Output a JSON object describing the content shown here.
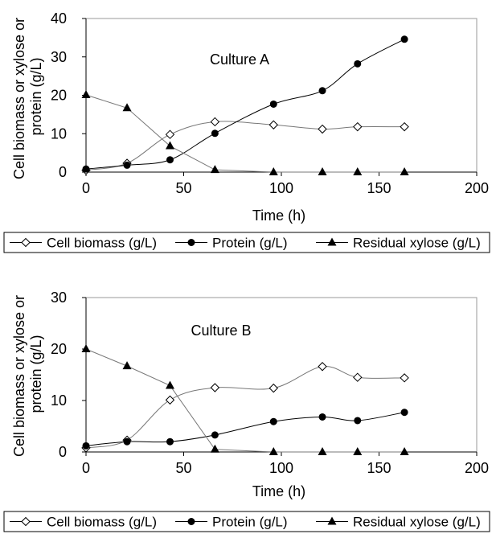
{
  "chart_data": [
    {
      "type": "line",
      "annotation": "Culture A",
      "xlabel": "Time (h)",
      "ylabel": "Cell biomass or xylose or protein (g/L)",
      "xlim": [
        0,
        200
      ],
      "ylim": [
        0,
        40
      ],
      "xticks": [
        "0",
        "50",
        "100",
        "150",
        "200"
      ],
      "yticks": [
        "0",
        "10",
        "20",
        "30",
        "40"
      ],
      "grid": false,
      "legend_position": "bottom",
      "series": [
        {
          "name": "Cell biomass (g/L)",
          "marker": "diamond-open",
          "smooth": true,
          "x": [
            0,
            21,
            43,
            66,
            96,
            121,
            139,
            163
          ],
          "y": [
            0.5,
            2.3,
            9.8,
            13.1,
            12.3,
            11.2,
            11.8,
            11.8
          ]
        },
        {
          "name": "Protein (g/L)",
          "marker": "circle-filled",
          "smooth": true,
          "x": [
            0,
            21,
            43,
            66,
            96,
            121,
            139,
            163
          ],
          "y": [
            0.8,
            1.8,
            3.2,
            10.1,
            17.7,
            21.2,
            28.2,
            34.6
          ]
        },
        {
          "name": "Residual xylose (g/L)",
          "marker": "triangle-filled",
          "smooth": false,
          "x": [
            0,
            21,
            43,
            66,
            96,
            121,
            139,
            163
          ],
          "y": [
            20.1,
            16.7,
            6.8,
            0.6,
            0,
            0,
            0,
            0
          ]
        }
      ]
    },
    {
      "type": "line",
      "annotation": "Culture B",
      "xlabel": "Time (h)",
      "ylabel": "Cell biomass or xylose or protein (g/L)",
      "xlim": [
        0,
        200
      ],
      "ylim": [
        0,
        30
      ],
      "xticks": [
        "0",
        "50",
        "100",
        "150",
        "200"
      ],
      "yticks": [
        "0",
        "10",
        "20",
        "30"
      ],
      "grid": false,
      "legend_position": "bottom",
      "series": [
        {
          "name": "Cell biomass (g/L)",
          "marker": "diamond-open",
          "smooth": true,
          "x": [
            0,
            21,
            43,
            66,
            96,
            121,
            139,
            163
          ],
          "y": [
            0.8,
            2.3,
            10.1,
            12.5,
            12.4,
            16.6,
            14.5,
            14.4
          ]
        },
        {
          "name": "Protein (g/L)",
          "marker": "circle-filled",
          "smooth": true,
          "x": [
            0,
            21,
            43,
            66,
            96,
            121,
            139,
            163
          ],
          "y": [
            1.2,
            2.0,
            2.0,
            3.3,
            5.9,
            6.8,
            6.1,
            7.7
          ]
        },
        {
          "name": "Residual xylose (g/L)",
          "marker": "triangle-filled",
          "smooth": false,
          "x": [
            0,
            21,
            43,
            66,
            96,
            121,
            139,
            163
          ],
          "y": [
            20.0,
            16.7,
            12.9,
            0.5,
            0,
            0,
            0,
            0
          ]
        }
      ]
    }
  ]
}
